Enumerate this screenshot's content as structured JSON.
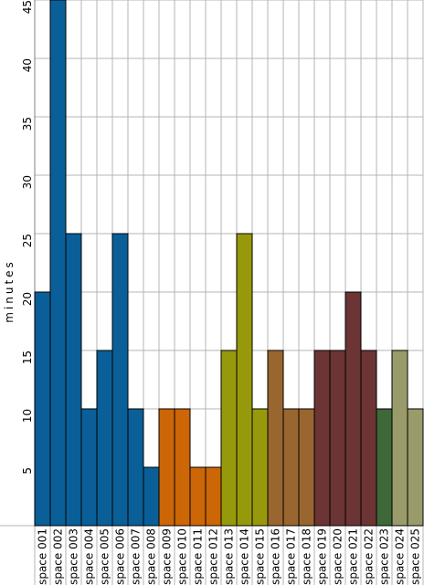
{
  "chart_data": {
    "type": "bar",
    "ylabel": "minutes",
    "xlabel": "",
    "title": "",
    "ylim": [
      0,
      45
    ],
    "yticks": [
      5,
      10,
      15,
      20,
      25,
      30,
      35,
      40,
      45
    ],
    "grid": true,
    "categories": [
      "space 001",
      "space 002",
      "space 003",
      "space 004",
      "space 005",
      "space 006",
      "space 007",
      "space 008",
      "space 009",
      "space 010",
      "space 011",
      "space 012",
      "space 013",
      "space 014",
      "space 015",
      "space 016",
      "space 017",
      "space 018",
      "space 019",
      "space 020",
      "space 021",
      "space 022",
      "space 023",
      "space 024",
      "space 025"
    ],
    "values": [
      20,
      45,
      25,
      10,
      15,
      25,
      10,
      5,
      10,
      10,
      5,
      5,
      15,
      25,
      10,
      15,
      10,
      10,
      15,
      15,
      20,
      15,
      10,
      15,
      10
    ],
    "colors": [
      "#0a5f98",
      "#0a5f98",
      "#0a5f98",
      "#0a5f98",
      "#0a5f98",
      "#0a5f98",
      "#0a5f98",
      "#0a5f98",
      "#cc6606",
      "#cc6606",
      "#cc6606",
      "#cc6606",
      "#97990c",
      "#97990c",
      "#97990c",
      "#9a6630",
      "#9a6630",
      "#9a6630",
      "#6c3434",
      "#6c3434",
      "#6c3434",
      "#6c3434",
      "#3e6838",
      "#9a9b6a",
      "#9a9b6a"
    ]
  }
}
